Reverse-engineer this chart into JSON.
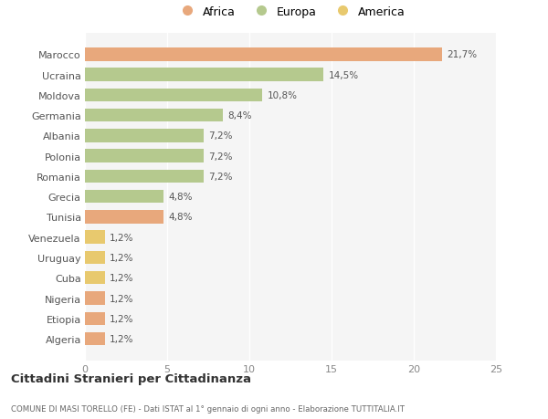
{
  "categories": [
    "Marocco",
    "Ucraina",
    "Moldova",
    "Germania",
    "Albania",
    "Polonia",
    "Romania",
    "Grecia",
    "Tunisia",
    "Venezuela",
    "Uruguay",
    "Cuba",
    "Nigeria",
    "Etiopia",
    "Algeria"
  ],
  "values": [
    21.7,
    14.5,
    10.8,
    8.4,
    7.2,
    7.2,
    7.2,
    4.8,
    4.8,
    1.2,
    1.2,
    1.2,
    1.2,
    1.2,
    1.2
  ],
  "colors": [
    "#e8a87c",
    "#b5c98e",
    "#b5c98e",
    "#b5c98e",
    "#b5c98e",
    "#b5c98e",
    "#b5c98e",
    "#b5c98e",
    "#e8a87c",
    "#e8c96e",
    "#e8c96e",
    "#e8c96e",
    "#e8a87c",
    "#e8a87c",
    "#e8a87c"
  ],
  "labels": [
    "21,7%",
    "14,5%",
    "10,8%",
    "8,4%",
    "7,2%",
    "7,2%",
    "7,2%",
    "4,8%",
    "4,8%",
    "1,2%",
    "1,2%",
    "1,2%",
    "1,2%",
    "1,2%",
    "1,2%"
  ],
  "legend_labels": [
    "Africa",
    "Europa",
    "America"
  ],
  "legend_colors": [
    "#e8a87c",
    "#b5c98e",
    "#e8c96e"
  ],
  "title": "Cittadini Stranieri per Cittadinanza",
  "subtitle": "COMUNE DI MASI TORELLO (FE) - Dati ISTAT al 1° gennaio di ogni anno - Elaborazione TUTTITALIA.IT",
  "xlim": [
    0,
    25
  ],
  "xticks": [
    0,
    5,
    10,
    15,
    20,
    25
  ],
  "background_color": "#ffffff",
  "plot_bg_color": "#f5f5f5",
  "grid_color": "#ffffff"
}
